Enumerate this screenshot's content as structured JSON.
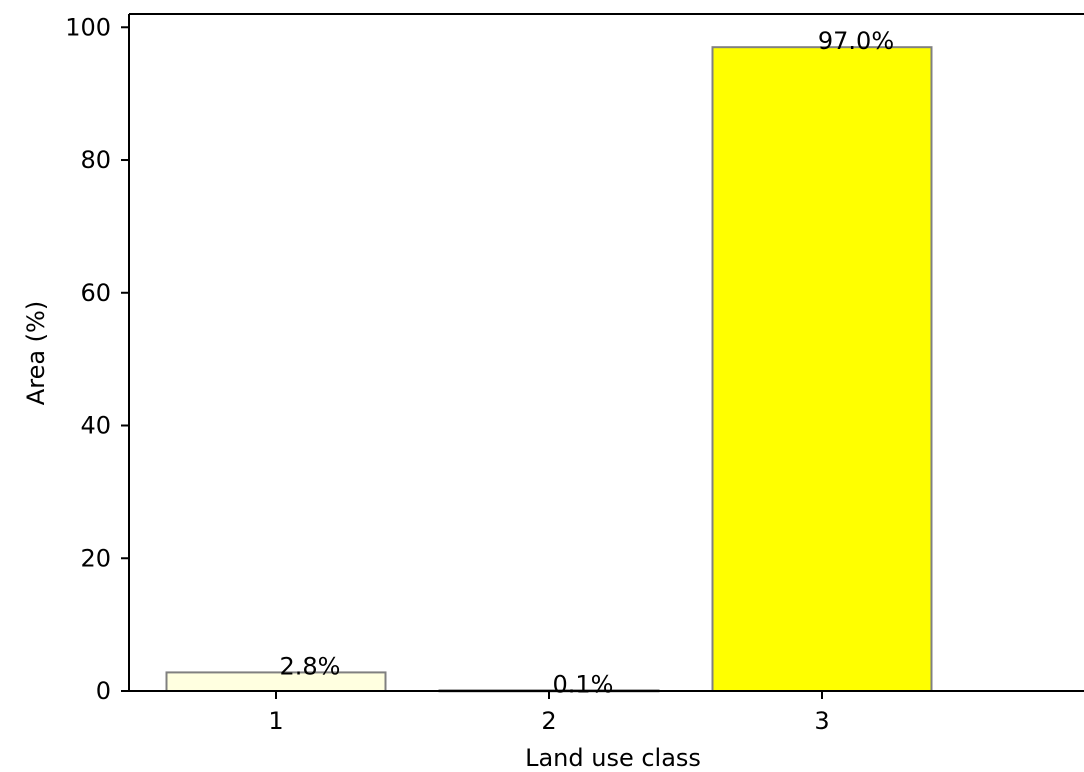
{
  "chart_data": {
    "type": "bar",
    "title": "",
    "xlabel": "Land use class",
    "ylabel": "Area (%)",
    "categories": [
      "1",
      "2",
      "3"
    ],
    "values": [
      2.8,
      0.1,
      97.0
    ],
    "data_labels": [
      "2.8%",
      "0.1%",
      "97.0%"
    ],
    "bar_colors": [
      "#ffffe0",
      "#ffff99",
      "#ffff00"
    ],
    "bar_edge_color": "#808080",
    "ylim": [
      0,
      102
    ],
    "yticks": [
      0,
      20,
      40,
      60,
      80,
      100
    ],
    "ytick_labels": [
      "0",
      "20",
      "40",
      "60",
      "80",
      "100"
    ],
    "grid": false,
    "legend": "none"
  }
}
